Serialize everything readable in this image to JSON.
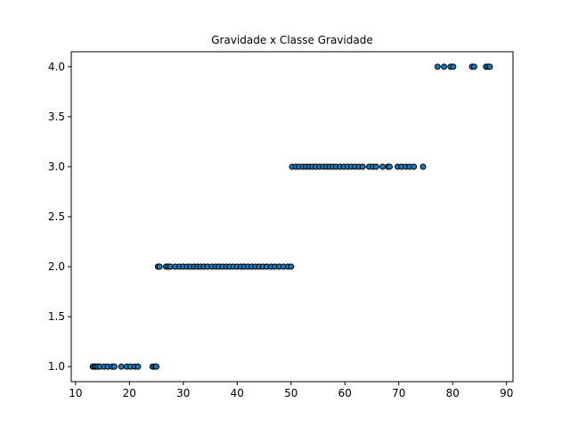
{
  "chart_data": {
    "type": "scatter",
    "title": "Gravidade x Classe Gravidade",
    "xlabel": "",
    "ylabel": "",
    "xlim": [
      9.2,
      91.2
    ],
    "ylim": [
      0.85,
      4.15
    ],
    "xticks": [
      10,
      20,
      30,
      40,
      50,
      60,
      70,
      80,
      90
    ],
    "yticks": [
      1.0,
      1.5,
      2.0,
      2.5,
      3.0,
      3.5,
      4.0
    ],
    "xtick_labels": [
      "10",
      "20",
      "30",
      "40",
      "50",
      "60",
      "70",
      "80",
      "90"
    ],
    "ytick_labels": [
      "1.0",
      "1.5",
      "2.0",
      "2.5",
      "3.0",
      "3.5",
      "4.0"
    ],
    "grid": false,
    "marker_color": "#1f77b4",
    "marker_edge": "#000000",
    "series": [
      {
        "points": [
          [
            13.2,
            1
          ],
          [
            13.5,
            1
          ],
          [
            13.8,
            1
          ],
          [
            14.1,
            1
          ],
          [
            14.5,
            1
          ],
          [
            15.3,
            1
          ],
          [
            16.0,
            1
          ],
          [
            16.8,
            1
          ],
          [
            17.2,
            1
          ],
          [
            18.5,
            1
          ],
          [
            19.5,
            1
          ],
          [
            20.2,
            1
          ],
          [
            21.0,
            1
          ],
          [
            21.6,
            1
          ],
          [
            24.3,
            1
          ],
          [
            24.7,
            1
          ],
          [
            25.0,
            1
          ],
          [
            25.3,
            2
          ],
          [
            25.6,
            2
          ],
          [
            26.8,
            2
          ],
          [
            27.2,
            2
          ],
          [
            27.6,
            2
          ],
          [
            28.5,
            2
          ],
          [
            29.3,
            2
          ],
          [
            30.0,
            2
          ],
          [
            30.7,
            2
          ],
          [
            31.3,
            2
          ],
          [
            32.0,
            2
          ],
          [
            32.6,
            2
          ],
          [
            33.2,
            2
          ],
          [
            33.8,
            2
          ],
          [
            34.5,
            2
          ],
          [
            35.3,
            2
          ],
          [
            36.0,
            2
          ],
          [
            36.6,
            2
          ],
          [
            37.3,
            2
          ],
          [
            38.0,
            2
          ],
          [
            38.6,
            2
          ],
          [
            39.3,
            2
          ],
          [
            40.0,
            2
          ],
          [
            40.7,
            2
          ],
          [
            41.3,
            2
          ],
          [
            42.0,
            2
          ],
          [
            42.7,
            2
          ],
          [
            43.4,
            2
          ],
          [
            44.1,
            2
          ],
          [
            44.8,
            2
          ],
          [
            45.5,
            2
          ],
          [
            46.3,
            2
          ],
          [
            47.0,
            2
          ],
          [
            47.8,
            2
          ],
          [
            48.6,
            2
          ],
          [
            49.4,
            2
          ],
          [
            50.0,
            2
          ],
          [
            50.2,
            3
          ],
          [
            50.9,
            3
          ],
          [
            51.5,
            3
          ],
          [
            52.2,
            3
          ],
          [
            52.8,
            3
          ],
          [
            53.4,
            3
          ],
          [
            54.0,
            3
          ],
          [
            54.6,
            3
          ],
          [
            55.3,
            3
          ],
          [
            56.0,
            3
          ],
          [
            56.6,
            3
          ],
          [
            57.2,
            3
          ],
          [
            57.8,
            3
          ],
          [
            58.4,
            3
          ],
          [
            59.1,
            3
          ],
          [
            59.8,
            3
          ],
          [
            60.5,
            3
          ],
          [
            61.2,
            3
          ],
          [
            61.9,
            3
          ],
          [
            62.6,
            3
          ],
          [
            63.3,
            3
          ],
          [
            64.5,
            3
          ],
          [
            65.2,
            3
          ],
          [
            65.8,
            3
          ],
          [
            67.0,
            3
          ],
          [
            68.0,
            3
          ],
          [
            68.3,
            3
          ],
          [
            69.8,
            3
          ],
          [
            70.5,
            3
          ],
          [
            71.3,
            3
          ],
          [
            72.0,
            3
          ],
          [
            72.8,
            3
          ],
          [
            74.5,
            3
          ],
          [
            77.2,
            4
          ],
          [
            78.4,
            4
          ],
          [
            79.6,
            4
          ],
          [
            80.1,
            4
          ],
          [
            83.6,
            4
          ],
          [
            84.0,
            4
          ],
          [
            86.2,
            4
          ],
          [
            86.6,
            4
          ],
          [
            86.9,
            4
          ]
        ]
      }
    ]
  }
}
